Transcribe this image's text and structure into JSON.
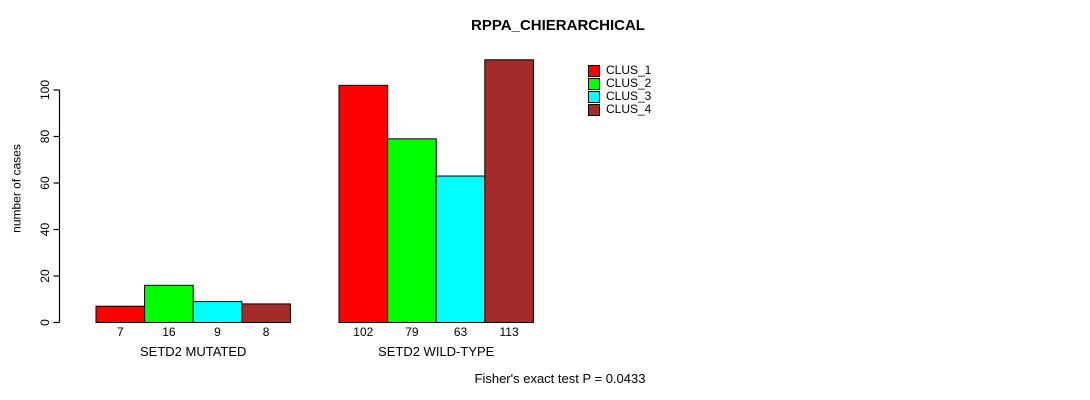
{
  "chart_data": {
    "type": "bar",
    "title": "RPPA_CHIERARCHICAL",
    "ylabel": "number of cases",
    "xlabel": "",
    "ylim": [
      0,
      116
    ],
    "yticks": [
      0,
      20,
      40,
      60,
      80,
      100
    ],
    "grid": false,
    "legend_position": "top-right",
    "categories": [
      "SETD2 MUTATED",
      "SETD2 WILD-TYPE"
    ],
    "series": [
      {
        "name": "CLUS_1",
        "color": "#FF0000",
        "values": [
          7,
          102
        ]
      },
      {
        "name": "CLUS_2",
        "color": "#00FF00",
        "values": [
          16,
          79
        ]
      },
      {
        "name": "CLUS_3",
        "color": "#00FFFF",
        "values": [
          9,
          63
        ]
      },
      {
        "name": "CLUS_4",
        "color": "#A52A2A",
        "values": [
          8,
          113
        ]
      }
    ],
    "bar_value_labels": [
      [
        7,
        16,
        9,
        8
      ],
      [
        102,
        79,
        63,
        113
      ]
    ],
    "annotation": "Fisher's exact test P = 0.0433",
    "axis_color": "#000000",
    "bar_border_color": "#000000"
  }
}
